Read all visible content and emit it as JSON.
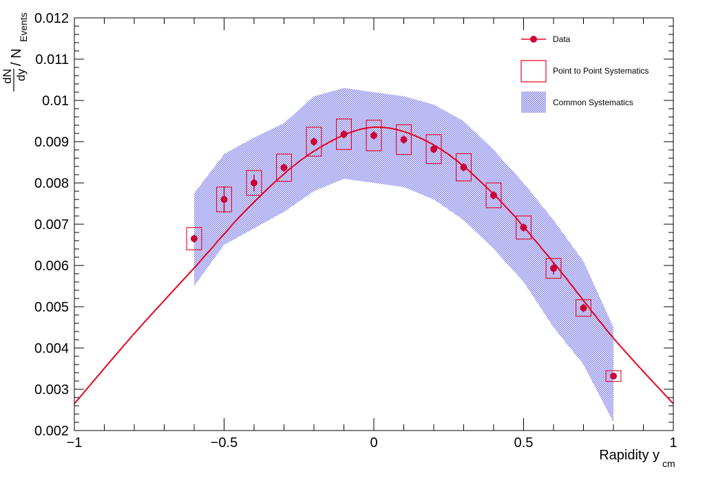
{
  "chart_data": {
    "type": "scatter",
    "xlabel": "Rapidity y",
    "xlabel_sub": "cm",
    "ylabel_num": "dN",
    "ylabel_den": "dy",
    "ylabel_rest": "/ N",
    "ylabel_sub": "Events",
    "xlim": [
      -1,
      1
    ],
    "ylim": [
      0.002,
      0.012
    ],
    "x_ticks": [
      -1,
      -0.5,
      0,
      0.5,
      1
    ],
    "x_tick_labels": [
      "−1",
      "−0.5",
      "0",
      "0.5",
      "1"
    ],
    "y_ticks": [
      0.002,
      0.003,
      0.004,
      0.005,
      0.006,
      0.007,
      0.008,
      0.009,
      0.01,
      0.011,
      0.012
    ],
    "y_tick_labels": [
      "0.002",
      "0.003",
      "0.004",
      "0.005",
      "0.006",
      "0.007",
      "0.008",
      "0.009",
      "0.01",
      "0.011",
      "0.012"
    ],
    "grid": false,
    "legend_position": "top-right",
    "legend": [
      {
        "label": "Data",
        "kind": "marker"
      },
      {
        "label": "Point to Point Systematics",
        "kind": "box"
      },
      {
        "label": "Common Systematics",
        "kind": "band"
      }
    ],
    "series": [
      {
        "name": "Data",
        "x": [
          -0.6,
          -0.5,
          -0.4,
          -0.3,
          -0.2,
          -0.1,
          0.0,
          0.1,
          0.2,
          0.3,
          0.4,
          0.5,
          0.6,
          0.7,
          0.8
        ],
        "y": [
          0.00665,
          0.0076,
          0.008,
          0.00837,
          0.009,
          0.00918,
          0.00915,
          0.00905,
          0.00882,
          0.00838,
          0.0077,
          0.00692,
          0.00593,
          0.00497,
          0.00332
        ],
        "stat_err": [
          0.0001,
          0.00032,
          0.0002,
          0.0001,
          0.0001,
          0.0001,
          0.0001,
          0.0001,
          0.0001,
          0.0001,
          0.0001,
          0.0001,
          0.00015,
          0.0001,
          5e-05
        ],
        "p2p_sys": [
          0.00027,
          0.0003,
          0.0003,
          0.00033,
          0.00035,
          0.00037,
          0.00037,
          0.00036,
          0.00035,
          0.00033,
          0.0003,
          0.00028,
          0.00024,
          0.0002,
          0.00013
        ],
        "common_sys_low": [
          0.0055,
          0.0065,
          0.0069,
          0.0073,
          0.0078,
          0.0081,
          0.008,
          0.0079,
          0.0076,
          0.0071,
          0.0064,
          0.0056,
          0.0045,
          0.0036,
          0.0022
        ],
        "common_sys_high": [
          0.00775,
          0.0087,
          0.0091,
          0.00945,
          0.0101,
          0.0103,
          0.0102,
          0.0101,
          0.0099,
          0.0095,
          0.0088,
          0.008,
          0.0071,
          0.0061,
          0.0045
        ]
      },
      {
        "type": "line",
        "x": [
          -1.0,
          -0.8,
          -0.6,
          -0.4,
          -0.2,
          0.0,
          0.2,
          0.4,
          0.6,
          0.8,
          1.0
        ],
        "y": [
          0.00265,
          0.00435,
          0.00594,
          0.00754,
          0.00877,
          0.00935,
          0.00892,
          0.00773,
          0.00607,
          0.00424,
          0.00265
        ],
        "smooth": true
      }
    ],
    "colors": {
      "data": "#cc0033",
      "p2p_box": "#e8001c",
      "fit": "#e8001c",
      "band": "#6f6fe6"
    }
  }
}
